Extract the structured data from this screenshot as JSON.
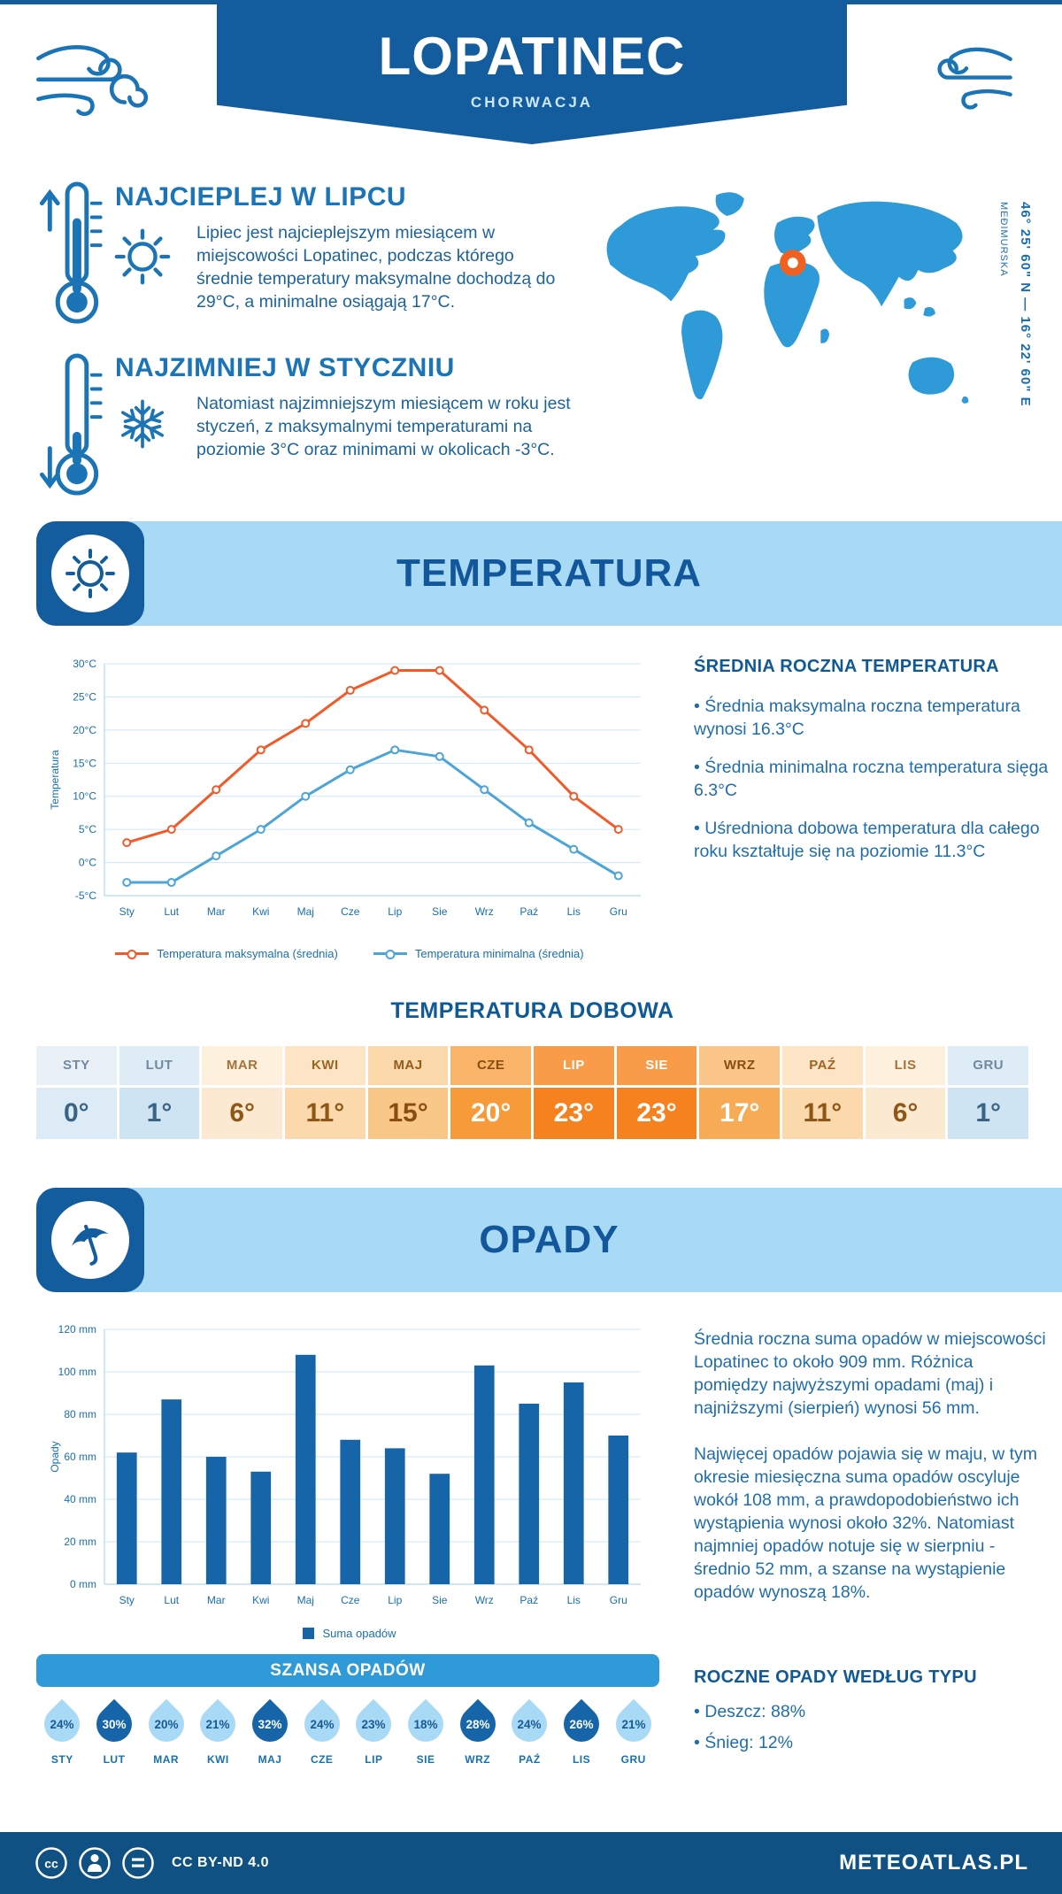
{
  "header": {
    "title": "LOPATINEC",
    "subtitle": "CHORWACJA"
  },
  "geo": {
    "coordinates": "46° 25' 60\" N — 16° 22' 60\" E",
    "region": "MEĐIMURSKA"
  },
  "highlights": {
    "warm": {
      "title": "NAJCIEPLEJ W LIPCU",
      "text": "Lipiec jest najcieplejszym miesiącem w miejscowości Lopatinec, podczas którego średnie temperatury maksymalne dochodzą do 29°C, a minimalne osiągają 17°C."
    },
    "cold": {
      "title": "NAJZIMNIEJ W STYCZNIU",
      "text": "Natomiast najzimniejszym miesiącem w roku jest styczeń, z maksymalnymi temperaturami na poziomie 3°C oraz minimami w okolicach -3°C."
    }
  },
  "temperature_section": {
    "banner": "TEMPERATURA",
    "summary_title": "ŚREDNIA ROCZNA TEMPERATURA",
    "bullets": [
      "Średnia maksymalna roczna temperatura wynosi 16.3°C",
      "Średnia minimalna roczna temperatura sięga 6.3°C",
      "Uśredniona dobowa temperatura dla całego roku kształtuje się na poziomie 11.3°C"
    ],
    "daily_title": "TEMPERATURA DOBOWA",
    "daily_columns": [
      {
        "month": "STY",
        "value": "0°",
        "bg": "#dcebf5",
        "hbg": "#e9f1f7",
        "fg": "#3a6486",
        "hfg": "#7189a0"
      },
      {
        "month": "LUT",
        "value": "1°",
        "bg": "#cfe4f2",
        "hbg": "#ddecf5",
        "fg": "#3a6486",
        "hfg": "#7189a0"
      },
      {
        "month": "MAR",
        "value": "6°",
        "bg": "#fce9d2",
        "hbg": "#fdf0dd",
        "fg": "#8f5716",
        "hfg": "#a3733c"
      },
      {
        "month": "KWI",
        "value": "11°",
        "bg": "#fbd9ad",
        "hbg": "#fce4c4",
        "fg": "#8f5716",
        "hfg": "#9c6526"
      },
      {
        "month": "MAJ",
        "value": "15°",
        "bg": "#f9c887",
        "hbg": "#fbd8a9",
        "fg": "#8a4c10",
        "hfg": "#94591d"
      },
      {
        "month": "CZE",
        "value": "20°",
        "bg": "#f79a3a",
        "hbg": "#f9b469",
        "fg": "#ffffff",
        "hfg": "#8a4c10"
      },
      {
        "month": "LIP",
        "value": "23°",
        "bg": "#f5811f",
        "hbg": "#f89c49",
        "fg": "#ffffff",
        "hfg": "#ffffff"
      },
      {
        "month": "SIE",
        "value": "23°",
        "bg": "#f5811f",
        "hbg": "#f89c49",
        "fg": "#ffffff",
        "hfg": "#ffffff"
      },
      {
        "month": "WRZ",
        "value": "17°",
        "bg": "#f8ab55",
        "hbg": "#fac68a",
        "fg": "#ffffff",
        "hfg": "#8a4c10"
      },
      {
        "month": "PAŹ",
        "value": "11°",
        "bg": "#fbd9ad",
        "hbg": "#fce4c4",
        "fg": "#8f5716",
        "hfg": "#9c6526"
      },
      {
        "month": "LIS",
        "value": "6°",
        "bg": "#fce9d2",
        "hbg": "#fdf0dd",
        "fg": "#8f5716",
        "hfg": "#a3733c"
      },
      {
        "month": "GRU",
        "value": "1°",
        "bg": "#cfe4f2",
        "hbg": "#ddecf5",
        "fg": "#3a6486",
        "hfg": "#7189a0"
      }
    ]
  },
  "precipitation_section": {
    "banner": "OPADY",
    "paragraphs": [
      "Średnia roczna suma opadów w miejscowości Lopatinec to około 909 mm. Różnica pomiędzy najwyższymi opadami (maj) i najniższymi (sierpień) wynosi 56 mm.",
      "Najwięcej opadów pojawia się w maju, w tym okresie miesięczna suma opadów oscyluje wokół 108 mm, a prawdopodobieństwo ich wystąpienia wynosi około 32%. Natomiast najmniej opadów notuje się w sierpniu - średnio 52 mm, a szanse na wystąpienie opadów wynoszą 18%."
    ],
    "chance_title": "SZANSA OPADÓW",
    "drop_light": "#a9daf5",
    "drop_dark": "#1565a8",
    "drop_light_text": "#155a96",
    "drop_dark_text": "#ffffff",
    "chance": [
      {
        "month": "STY",
        "percent": "24%",
        "dark": false
      },
      {
        "month": "LUT",
        "percent": "30%",
        "dark": true
      },
      {
        "month": "MAR",
        "percent": "20%",
        "dark": false
      },
      {
        "month": "KWI",
        "percent": "21%",
        "dark": false
      },
      {
        "month": "MAJ",
        "percent": "32%",
        "dark": true
      },
      {
        "month": "CZE",
        "percent": "24%",
        "dark": false
      },
      {
        "month": "LIP",
        "percent": "23%",
        "dark": false
      },
      {
        "month": "SIE",
        "percent": "18%",
        "dark": false
      },
      {
        "month": "WRZ",
        "percent": "28%",
        "dark": true
      },
      {
        "month": "PAŹ",
        "percent": "24%",
        "dark": false
      },
      {
        "month": "LIS",
        "percent": "26%",
        "dark": true
      },
      {
        "month": "GRU",
        "percent": "21%",
        "dark": false
      }
    ],
    "types_title": "ROCZNE OPADY WEDŁUG TYPU",
    "types": [
      "Deszcz: 88%",
      "Śnieg: 12%"
    ]
  },
  "footer": {
    "license": "CC BY-ND 4.0",
    "brand": "METEOATLAS.PL"
  },
  "colors": {
    "brand_dark": "#135d9e",
    "banner_light": "#a9daf5",
    "banner_medium": "#2e9ad8",
    "marker_orange": "#f2601f"
  },
  "chart_data": [
    {
      "type": "line",
      "categories": [
        "Sty",
        "Lut",
        "Mar",
        "Kwi",
        "Maj",
        "Cze",
        "Lip",
        "Sie",
        "Wrz",
        "Paź",
        "Lis",
        "Gru"
      ],
      "series": [
        {
          "name": "Temperatura maksymalna (średnia)",
          "color": "#f15a29",
          "values": [
            3,
            5,
            11,
            17,
            21,
            26,
            29,
            29,
            23,
            17,
            10,
            5
          ]
        },
        {
          "name": "Temperatura minimalna (średnia)",
          "color": "#4da4d9",
          "values": [
            -3,
            -3,
            1,
            5,
            10,
            14,
            17,
            16,
            11,
            6,
            2,
            -2
          ]
        }
      ],
      "title": "",
      "xlabel": "",
      "ylabel": "Temperatura",
      "ylim": [
        -5,
        30
      ],
      "ytick_step": 5,
      "ytick_suffix": "°C",
      "grid": true,
      "legend_position": "bottom"
    },
    {
      "type": "bar",
      "categories": [
        "Sty",
        "Lut",
        "Mar",
        "Kwi",
        "Maj",
        "Cze",
        "Lip",
        "Sie",
        "Wrz",
        "Paź",
        "Lis",
        "Gru"
      ],
      "series": [
        {
          "name": "Suma opadów",
          "color": "#1565a8",
          "values": [
            62,
            87,
            60,
            53,
            108,
            68,
            64,
            52,
            103,
            85,
            95,
            70
          ]
        }
      ],
      "title": "",
      "xlabel": "",
      "ylabel": "Opady",
      "ylim": [
        0,
        120
      ],
      "ytick_step": 20,
      "ytick_suffix": " mm",
      "grid": true,
      "legend_position": "bottom"
    }
  ]
}
